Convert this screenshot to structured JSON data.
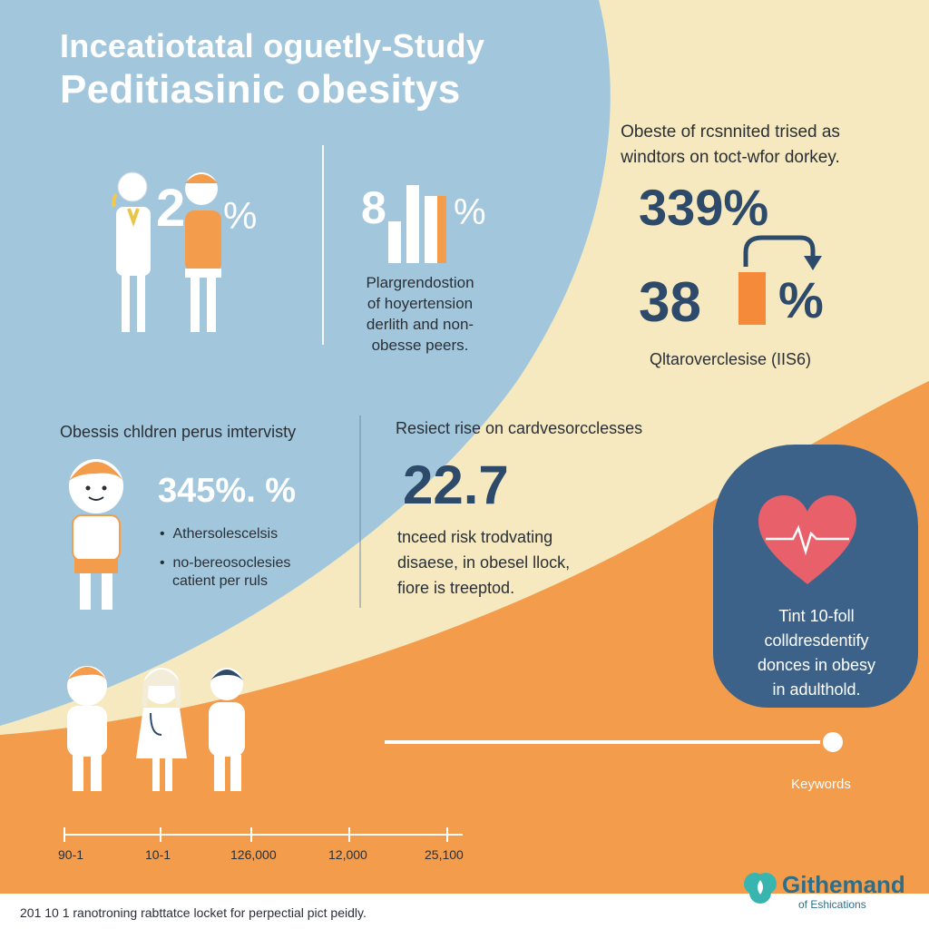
{
  "title": {
    "line1": "Inceatiotatal oguetly-Study",
    "line2": "Peditiasinic obesitys"
  },
  "panel_top_left": {
    "stat": "2",
    "stat_suffix": "%"
  },
  "panel_top_middle": {
    "stat_prefix": "8",
    "stat_suffix": "%",
    "caption_lines": [
      "Plargrendostion",
      "of hoyertension",
      "derlith and non-",
      "obesse peers."
    ]
  },
  "panel_top_right": {
    "heading_lines": [
      "Obeste of rcsnnited trised as",
      "windtors on toct-wfor dorkey."
    ],
    "stat1": "339%",
    "stat2_prefix": "38",
    "stat2_suffix": "%",
    "caption": "Qltaroverclesise (IIS6)"
  },
  "panel_mid_left": {
    "heading": "Obessis chldren perus imtervisty",
    "stat": "345%. %",
    "bullets": [
      "Athersolescelsis",
      "no-bereosoclesies"
    ],
    "bullet_sub": "catient per ruls"
  },
  "panel_mid_middle": {
    "heading": "Resiect rise on cardvesorcclesses",
    "stat": "22.7",
    "caption_lines": [
      "tnceed risk trodvating",
      "disaese, in obesel llock,",
      "fiore is treeptod."
    ]
  },
  "heart_card": {
    "text_lines": [
      "Tint 10-foll",
      "colldresdentify",
      "donces in obesy",
      "in adulthold."
    ],
    "colors": {
      "card": "#3d6289",
      "heart": "#e8606a"
    }
  },
  "slider": {
    "label": "Keywords",
    "value_fraction": 1.0
  },
  "timeline": {
    "labels": [
      "90-1",
      "10-1",
      "126,000",
      "12,000",
      "25,100"
    ]
  },
  "footer": {
    "note": "201 10 1 ranotroning rabttatce locket for perpectial pict peidly.",
    "brand_name": "Githemand",
    "brand_sub": "of Eshications"
  },
  "colors": {
    "blue": "#9ec4da",
    "cream": "#f6e9c0",
    "orange": "#f29a4a",
    "accent_orange": "#f58a3a",
    "navy": "#2d4a6a",
    "teal": "#39b5b0"
  }
}
